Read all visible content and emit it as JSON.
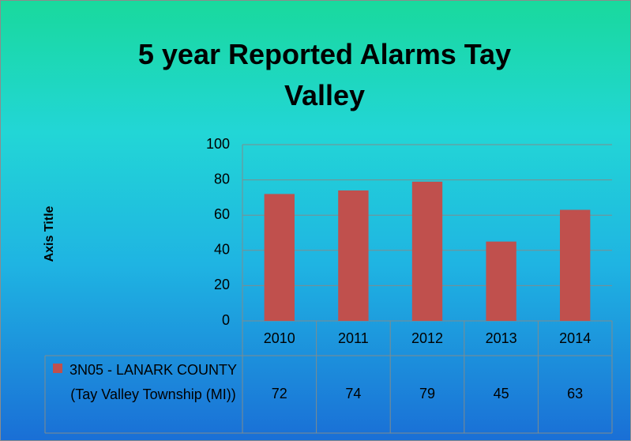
{
  "chart_data": {
    "type": "bar",
    "title": "5 year Reported Alarms Tay Valley",
    "y_axis_label": "Axis Title",
    "categories": [
      "2010",
      "2011",
      "2012",
      "2013",
      "2014"
    ],
    "series": [
      {
        "name": "3N05 - LANARK COUNTY (Tay Valley Township (MI))",
        "color": "#c0504d",
        "values": [
          72,
          74,
          79,
          45,
          63
        ]
      }
    ],
    "ylim": [
      0,
      100
    ],
    "yticks": [
      0,
      20,
      40,
      60,
      80,
      100
    ],
    "grid": true,
    "data_table": true
  }
}
